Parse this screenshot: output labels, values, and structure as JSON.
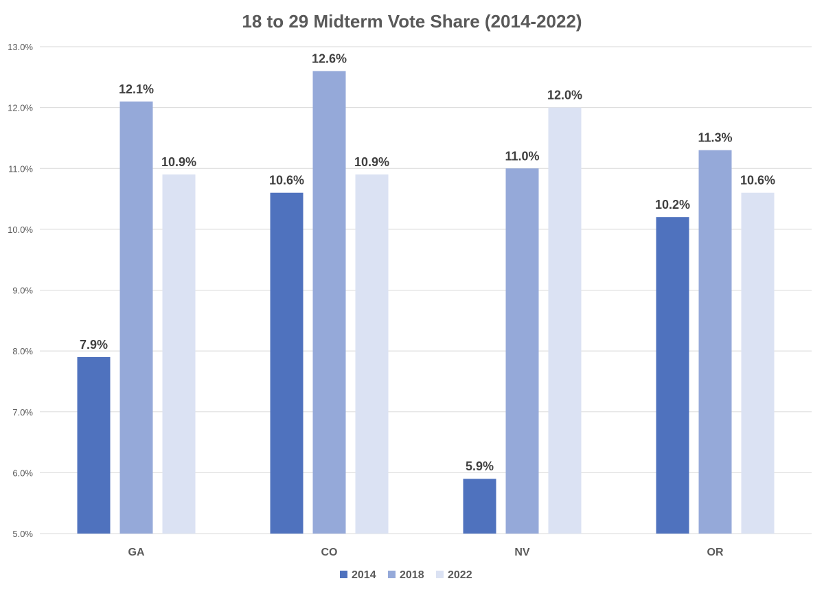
{
  "chart_data": {
    "type": "bar",
    "title": "18 to 29 Midterm Vote Share (2014-2022)",
    "xlabel": "",
    "ylabel": "",
    "categories": [
      "GA",
      "CO",
      "NV",
      "OR"
    ],
    "series": [
      {
        "name": "2014",
        "color": "#4f72be",
        "values": [
          7.9,
          10.6,
          5.9,
          10.2
        ],
        "labels": [
          "7.9%",
          "10.6%",
          "5.9%",
          "10.2%"
        ]
      },
      {
        "name": "2018",
        "color": "#95a9d9",
        "values": [
          12.1,
          12.6,
          11.0,
          11.3
        ],
        "labels": [
          "12.1%",
          "12.6%",
          "11.0%",
          "11.3%"
        ]
      },
      {
        "name": "2022",
        "color": "#dbe2f3",
        "values": [
          10.9,
          10.9,
          12.0,
          10.6
        ],
        "labels": [
          "10.9%",
          "10.9%",
          "12.0%",
          "10.6%"
        ]
      }
    ],
    "ylim": [
      5.0,
      13.0
    ],
    "yticks": [
      5.0,
      6.0,
      7.0,
      8.0,
      9.0,
      10.0,
      11.0,
      12.0,
      13.0
    ],
    "ytick_labels": [
      "5.0%",
      "6.0%",
      "7.0%",
      "8.0%",
      "9.0%",
      "10.0%",
      "11.0%",
      "12.0%",
      "13.0%"
    ],
    "grid": true,
    "legend_position": "bottom"
  }
}
